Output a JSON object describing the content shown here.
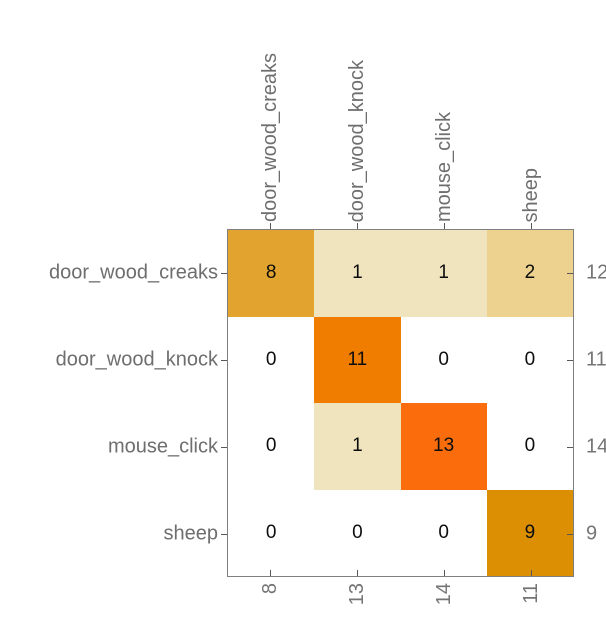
{
  "chart_data": {
    "type": "heatmap",
    "subtype": "confusion-matrix",
    "title": "",
    "classes": [
      "door_wood_creaks",
      "door_wood_knock",
      "mouse_click",
      "sheep"
    ],
    "col_labels": [
      "door_wood_creaks",
      "door_wood_knock",
      "mouse_click",
      "sheep"
    ],
    "row_labels": [
      "door_wood_creaks",
      "door_wood_knock",
      "mouse_click",
      "sheep"
    ],
    "matrix": [
      [
        8,
        1,
        1,
        2
      ],
      [
        0,
        11,
        0,
        0
      ],
      [
        0,
        1,
        13,
        0
      ],
      [
        0,
        0,
        0,
        9
      ]
    ],
    "row_sums": [
      "12",
      "11",
      "14",
      "9"
    ],
    "col_sums": [
      "8",
      "13",
      "14",
      "11"
    ],
    "cell_colors": [
      [
        "#E2A42E",
        "#F0E4BE",
        "#F0E4BE",
        "#ECD28E"
      ],
      [
        "#FFFFFF",
        "#F17D00",
        "#FFFFFF",
        "#FFFFFF"
      ],
      [
        "#FFFFFF",
        "#F0E4BE",
        "#FB6D0C",
        "#FFFFFF"
      ],
      [
        "#FFFFFF",
        "#FFFFFF",
        "#FFFFFF",
        "#DC8F03"
      ]
    ],
    "style": {
      "grid": false,
      "legend": false,
      "border_color": "#7F7F7F",
      "tick_color": "#595959",
      "label_color": "#6E6E6E",
      "value_color": "#0D0D0D",
      "background_color": "#FFFFFF"
    }
  }
}
